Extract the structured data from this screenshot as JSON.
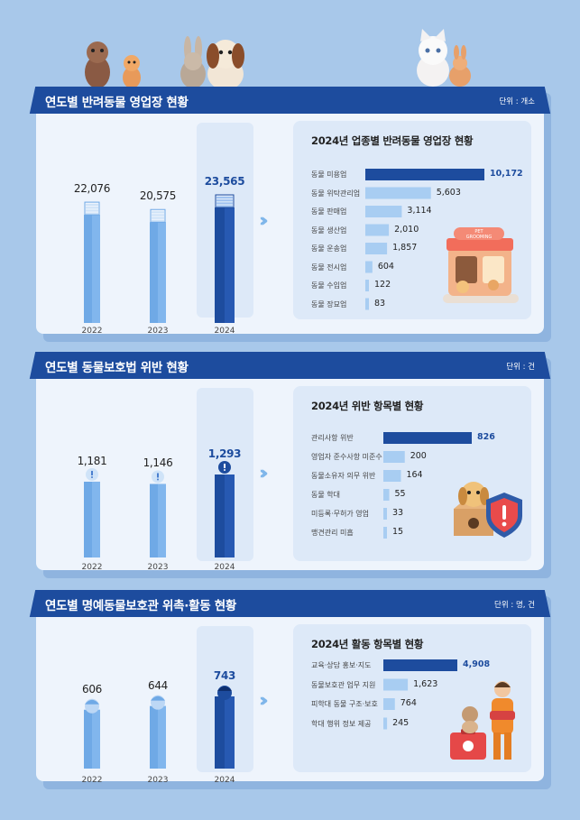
{
  "colors": {
    "highlight": "#1d4c9e",
    "normal": "#6fa9e6",
    "light": "#a8cdf2",
    "header": "#1d4c9e"
  },
  "chart_data": [
    {
      "type": "bar",
      "title": "연도별 반려동물 영업장 현황",
      "unit": "단위 : 개소",
      "categories": [
        "2022",
        "2023",
        "2024"
      ],
      "values": [
        22076,
        20575,
        23565
      ],
      "labels": [
        "22,076",
        "20,575",
        "23,565"
      ],
      "highlight_index": 2,
      "breakdown": {
        "type": "bar",
        "orientation": "horizontal",
        "title": "2024년 업종별 반려동물 영업장 현황",
        "categories": [
          "동물 미용업",
          "동물 위탁관리업",
          "동물 판매업",
          "동물 생산업",
          "동물 운송업",
          "동물 전시업",
          "동물 수입업",
          "동물 장묘업"
        ],
        "values": [
          10172,
          5603,
          3114,
          2010,
          1857,
          604,
          122,
          83
        ],
        "labels": [
          "10,172",
          "5,603",
          "3,114",
          "2,010",
          "1,857",
          "604",
          "122",
          "83"
        ]
      }
    },
    {
      "type": "bar",
      "title": "연도별 동물보호법 위반 현황",
      "unit": "단위 : 건",
      "categories": [
        "2022",
        "2023",
        "2024"
      ],
      "values": [
        1181,
        1146,
        1293
      ],
      "labels": [
        "1,181",
        "1,146",
        "1,293"
      ],
      "highlight_index": 2,
      "breakdown": {
        "type": "bar",
        "orientation": "horizontal",
        "title": "2024년 위반 항목별 현황",
        "categories": [
          "관리사항 위반",
          "영업자 준수사항 미준수",
          "동물소유자 의무 위반",
          "동물 학대",
          "미등록·무허가 영업",
          "맹견관리 미흡"
        ],
        "values": [
          826,
          200,
          164,
          55,
          33,
          15
        ],
        "labels": [
          "826",
          "200",
          "164",
          "55",
          "33",
          "15"
        ]
      }
    },
    {
      "type": "bar",
      "title": "연도별 명예동물보호관 위촉·활동 현황",
      "unit": "단위 : 명, 건",
      "categories": [
        "2022",
        "2023",
        "2024"
      ],
      "values": [
        606,
        644,
        743
      ],
      "labels": [
        "606",
        "644",
        "743"
      ],
      "highlight_index": 2,
      "breakdown": {
        "type": "bar",
        "orientation": "horizontal",
        "title": "2024년 활동 항목별 현황",
        "categories": [
          "교육·상담 홍보·지도",
          "동물보호관 업무 지원",
          "피학대 동물 구조·보호",
          "학대 행위 정보 제공"
        ],
        "values": [
          4908,
          1623,
          764,
          245
        ],
        "labels": [
          "4,908",
          "1,623",
          "764",
          "245"
        ]
      }
    }
  ],
  "decor": {
    "shop_sign_line1": "PET",
    "shop_sign_line2": "GROOMING"
  }
}
